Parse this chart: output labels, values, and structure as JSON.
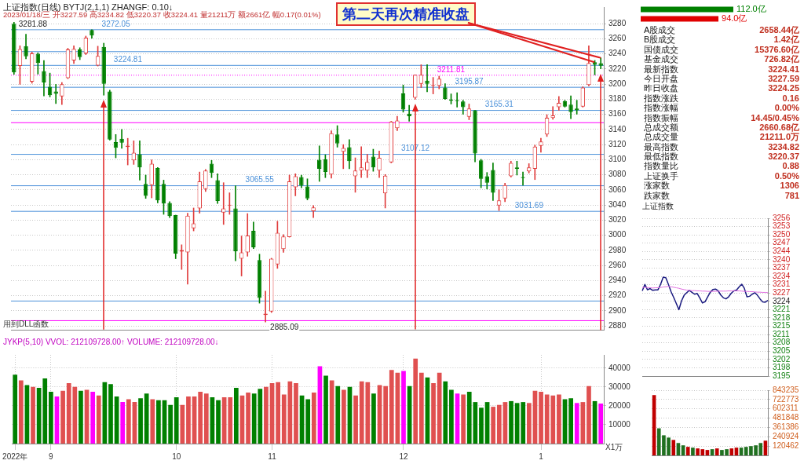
{
  "chart_data": [
    {
      "type": "candlestick",
      "title": "上证指数(日线) BYTJ(2,1,1) ZHANGF: 0.10↓",
      "subtitle": "2023/01/18/三 开3227.59 高3234.82 低3220.37 收3224.41 量21211万 额2661亿 幅0.17(0.01%)",
      "categories": [
        null,
        null,
        null,
        null,
        null,
        null,
        null,
        null,
        null,
        null,
        null,
        null,
        null,
        null,
        null,
        null,
        null,
        null,
        null,
        null,
        null,
        null,
        null,
        null,
        null,
        null,
        null,
        null,
        null,
        null,
        null,
        null,
        null,
        null,
        null,
        null,
        null,
        null,
        null,
        null,
        null,
        null,
        null,
        null,
        null,
        null,
        null,
        null,
        null,
        null,
        null,
        null,
        null,
        null,
        null,
        null,
        null,
        null,
        null,
        null,
        null,
        null,
        null,
        null,
        null,
        null,
        null,
        null,
        null,
        null,
        null,
        null,
        null,
        null,
        null,
        null,
        null,
        null,
        null,
        null,
        null,
        null,
        null,
        null,
        null,
        null,
        null,
        null,
        null,
        null,
        null,
        null,
        null,
        null,
        null,
        null,
        null,
        null,
        null
      ],
      "ohlc": [
        [
          3280.0,
          3281.88,
          3213.0,
          3215.6
        ],
        [
          3224.0,
          3250.8,
          3199.8,
          3246.5
        ],
        [
          3250.2,
          3266.0,
          3233.4,
          3236.8
        ],
        [
          3203.2,
          3242.5,
          3201.2,
          3240.8
        ],
        [
          3240.1,
          3241.5,
          3213.3,
          3228.0
        ],
        [
          3217.3,
          3231.4,
          3184.4,
          3202.2
        ],
        [
          3196.5,
          3214.6,
          3183.1,
          3185.4
        ],
        [
          3190.4,
          3199.8,
          3174.3,
          3187.1
        ],
        [
          3183.7,
          3202.2,
          3173.0,
          3199.8
        ],
        [
          3207.9,
          3247.5,
          3207.2,
          3245.8
        ],
        [
          3231.4,
          3250.8,
          3227.4,
          3246.8
        ],
        [
          3245.8,
          3248.2,
          3232.4,
          3235.7
        ],
        [
          3240.8,
          3263.6,
          3239.1,
          3261.6
        ],
        [
          3271.6,
          3272.05,
          3260.9,
          3264.3
        ],
        [
          3224.7,
          3250.2,
          3224.0,
          3237.4
        ],
        [
          3249.2,
          3254.2,
          3185.4,
          3200.5
        ],
        [
          3190.4,
          3192.1,
          3126.0,
          3126.7
        ],
        [
          3123.3,
          3133.4,
          3102.5,
          3115.9
        ],
        [
          3127.7,
          3140.1,
          3115.0,
          3122.6
        ],
        [
          3116.9,
          3128.3,
          3093.1,
          3118.6
        ],
        [
          3099.1,
          3125.0,
          3093.8,
          3109.2
        ],
        [
          3107.2,
          3125.0,
          3073.0,
          3089.8
        ],
        [
          3068.0,
          3079.7,
          3048.8,
          3052.2
        ],
        [
          3066.3,
          3099.8,
          3049.5,
          3094.8
        ],
        [
          3089.1,
          3089.8,
          3042.8,
          3046.1
        ],
        [
          3068.0,
          3073.0,
          3027.7,
          3042.1
        ],
        [
          3042.8,
          3044.4,
          3023.3,
          3025.3
        ],
        [
          3026.7,
          3026.7,
          2969.0,
          2975.7
        ],
        [
          2978.4,
          2987.4,
          2954.8,
          2980.4
        ],
        [
          2977.3,
          3029.3,
          2935.4,
          3026.0
        ],
        [
          3009.2,
          3036.1,
          3005.8,
          3015.9
        ],
        [
          3035.4,
          3083.7,
          3029.3,
          3071.3
        ],
        [
          3061.2,
          3087.1,
          3057.9,
          3085.7
        ],
        [
          3094.8,
          3099.1,
          3076.3,
          3082.4
        ],
        [
          3073.0,
          3081.4,
          3042.1,
          3045.4
        ],
        [
          3030.0,
          3069.6,
          3014.3,
          3035.4
        ],
        [
          3039.4,
          3056.2,
          3027.7,
          3040.4
        ],
        [
          3035.4,
          3065.6,
          2966.3,
          2979.0
        ],
        [
          2968.9,
          2999.1,
          2946.1,
          2977.3
        ],
        [
          2977.3,
          3028.7,
          2972.3,
          2999.8
        ],
        [
          3005.8,
          3017.6,
          2982.4,
          2984.0
        ],
        [
          2967.3,
          2975.0,
          2910.2,
          2917.0
        ],
        [
          2894.5,
          2926.0,
          2885.09,
          2896.2
        ],
        [
          2899.1,
          2969.6,
          2897.8,
          2969.0
        ],
        [
          2961.6,
          3018.6,
          2956.2,
          3003.2
        ],
        [
          2981.7,
          3000.8,
          2977.3,
          2998.5
        ],
        [
          2997.5,
          3079.7,
          2997.5,
          3071.3
        ],
        [
          3063.6,
          3081.4,
          3052.2,
          3078.0
        ],
        [
          3077.0,
          3079.7,
          3062.9,
          3065.6
        ],
        [
          3064.6,
          3074.7,
          3046.8,
          3048.8
        ],
        [
          3032.0,
          3039.4,
          3023.3,
          3036.7
        ],
        [
          3099.8,
          3118.3,
          3071.3,
          3088.0
        ],
        [
          3100.5,
          3106.5,
          3076.3,
          3083.7
        ],
        [
          3080.4,
          3138.4,
          3075.7,
          3135.1
        ],
        [
          3133.4,
          3145.1,
          3116.6,
          3121.6
        ],
        [
          3110.6,
          3120.0,
          3088.1,
          3115.6
        ],
        [
          3116.6,
          3126.7,
          3088.1,
          3098.1
        ],
        [
          3078.0,
          3102.5,
          3056.9,
          3085.7
        ],
        [
          3085.7,
          3117.3,
          3076.3,
          3089.8
        ],
        [
          3085.7,
          3107.2,
          3076.3,
          3097.1
        ],
        [
          3104.2,
          3113.9,
          3084.7,
          3089.8
        ],
        [
          3085.7,
          3111.6,
          3076.3,
          3102.5
        ],
        [
          3055.5,
          3080.4,
          3036.1,
          3079.0
        ],
        [
          3096.5,
          3150.8,
          3095.8,
          3150.2
        ],
        [
          3141.8,
          3157.5,
          3138.4,
          3151.8
        ],
        [
          3187.8,
          3198.8,
          3162.9,
          3166.3
        ],
        [
          3160.9,
          3172.0,
          3150.8,
          3157.5
        ],
        [
          3182.1,
          3212.3,
          3180.0,
          3212.3
        ],
        [
          3200.5,
          3225.7,
          3195.5,
          3212.3
        ],
        [
          3204.5,
          3225.7,
          3189.8,
          3200.5
        ],
        [
          3197.8,
          3208.9,
          3187.1,
          3198.8
        ],
        [
          3197.8,
          3210.6,
          3193.8,
          3207.2
        ],
        [
          3195.5,
          3200.5,
          3179.7,
          3180.4
        ],
        [
          3179.7,
          3187.1,
          3173.7,
          3178.0
        ],
        [
          3179.0,
          3188.8,
          3169.6,
          3177.7
        ],
        [
          3177.0,
          3178.7,
          3160.2,
          3169.6
        ],
        [
          3156.9,
          3173.7,
          3152.9,
          3167.6
        ],
        [
          3165.3,
          3165.31,
          3097.1,
          3108.2
        ],
        [
          3099.1,
          3100.5,
          3062.9,
          3074.7
        ],
        [
          3078.0,
          3083.1,
          3061.2,
          3069.6
        ],
        [
          3086.4,
          3095.8,
          3046.1,
          3056.2
        ],
        [
          3039.4,
          3060.2,
          3032.7,
          3046.1
        ],
        [
          3048.8,
          3069.0,
          3044.4,
          3066.3
        ],
        [
          3078.0,
          3098.1,
          3077.0,
          3095.8
        ],
        [
          3089.8,
          3098.1,
          3079.7,
          3088.1
        ],
        [
          3077.0,
          3083.7,
          3066.3,
          3075.7
        ],
        [
          3084.7,
          3094.8,
          3082.4,
          3089.8
        ],
        [
          3088.1,
          3119.3,
          3073.7,
          3117.3
        ],
        [
          3118.3,
          3128.3,
          3109.9,
          3124.0
        ],
        [
          3133.4,
          3159.6,
          3130.7,
          3155.4
        ],
        [
          3155.2,
          3170.3,
          3153.5,
          3158.6
        ],
        [
          3169.6,
          3183.7,
          3165.3,
          3175.3
        ],
        [
          3177.7,
          3178.7,
          3169.6,
          3170.3
        ],
        [
          3173.0,
          3184.4,
          3154.2,
          3163.0
        ],
        [
          3167.6,
          3178.7,
          3160.2,
          3165.3
        ],
        [
          3170.3,
          3196.5,
          3169.6,
          3195.5
        ],
        [
          3198.8,
          3250.8,
          3197.8,
          3228.0
        ],
        [
          3229.0,
          3231.4,
          3212.3,
          3225.7
        ],
        [
          3227.59,
          3234.82,
          3220.37,
          3224.41
        ]
      ],
      "colors": [
        "#008000",
        "#e03c3c",
        "#008000",
        "#e03c3c",
        "#008000",
        "#008000",
        "#008000",
        "#008000",
        "#e03c3c",
        "#e03c3c",
        "#e03c3c",
        "#008000",
        "#e03c3c",
        "#008000",
        "#e03c3c",
        "#008000",
        "#008000",
        "#008000",
        "#008000",
        "#e03c3c",
        "#e03c3c",
        "#008000",
        "#008000",
        "#e03c3c",
        "#008000",
        "#008000",
        "#008000",
        "#008000",
        "#e03c3c",
        "#e03c3c",
        "#e03c3c",
        "#e03c3c",
        "#e03c3c",
        "#008000",
        "#008000",
        "#e03c3c",
        "#e03c3c",
        "#008000",
        "#e03c3c",
        "#e03c3c",
        "#008000",
        "#008000",
        "#e03c3c",
        "#e03c3c",
        "#e03c3c",
        "#e03c3c",
        "#e03c3c",
        "#e03c3c",
        "#008000",
        "#008000",
        "#e03c3c",
        "#008000",
        "#008000",
        "#e03c3c",
        "#008000",
        "#e03c3c",
        "#008000",
        "#e03c3c",
        "#e03c3c",
        "#e03c3c",
        "#008000",
        "#e03c3c",
        "#e03c3c",
        "#e03c3c",
        "#e03c3c",
        "#008000",
        "#008000",
        "#e03c3c",
        "#e03c3c",
        "#008000",
        "#e03c3c",
        "#e03c3c",
        "#008000",
        "#008000",
        "#008000",
        "#008000",
        "#e03c3c",
        "#008000",
        "#008000",
        "#008000",
        "#008000",
        "#e03c3c",
        "#e03c3c",
        "#e03c3c",
        "#008000",
        "#008000",
        "#e03c3c",
        "#e03c3c",
        "#e03c3c",
        "#e03c3c",
        "#e03c3c",
        "#e03c3c",
        "#008000",
        "#008000",
        "#008000",
        "#e03c3c",
        "#e03c3c",
        "#008000",
        "#008000"
      ],
      "ylim": [
        2875,
        3302
      ],
      "yticks": [
        2880,
        2900,
        2920,
        2940,
        2960,
        2980,
        3000,
        3020,
        3040,
        3060,
        3080,
        3100,
        3120,
        3140,
        3160,
        3180,
        3200,
        3220,
        3240,
        3260,
        3280
      ],
      "grid": "y",
      "tick_labels": "y",
      "ref_lines": [
        {
          "axis": "y",
          "value": 3272.05,
          "label": "3272.05",
          "color": "#4a90d9"
        },
        {
          "axis": "y",
          "value": 3243,
          "color": "#4a90d9"
        },
        {
          "axis": "y",
          "value": 3224.81,
          "label": "3224.81",
          "color": "#4a90d9"
        },
        {
          "axis": "y",
          "value": 3211.81,
          "label": "3211.81",
          "color": "#ff00ff",
          "line_style": "dotted"
        },
        {
          "axis": "y",
          "value": 3195.87,
          "label": "3195.87",
          "color": "#4a90d9"
        },
        {
          "axis": "y",
          "value": 3165.31,
          "label": "3165.31",
          "color": "#4a90d9"
        },
        {
          "axis": "y",
          "value": 3149,
          "color": "#ff00ff"
        },
        {
          "axis": "y",
          "value": 3107.12,
          "label": "3107.12",
          "color": "#4a90d9"
        },
        {
          "axis": "y",
          "value": 3065.55,
          "label": "3065.55",
          "color": "#4a90d9"
        },
        {
          "axis": "y",
          "value": 3031.69,
          "label": "3031.69",
          "color": "#4a90d9"
        },
        {
          "axis": "y",
          "value": 2913,
          "color": "#4a90d9"
        },
        {
          "axis": "y",
          "value": 2887,
          "color": "#ff00ff"
        }
      ],
      "annotations": [
        "第二天再次精准收盘",
        "用到DLL函数",
        "3281.88",
        "2885.09"
      ]
    },
    {
      "type": "bar",
      "title": "JYKP(5,10) VVOL: 212109728.00↑ VOLUME: 212109728.00↓",
      "ylabel": "X1万",
      "categories": [
        "2022年",
        null,
        null,
        null,
        null,
        null,
        "9",
        null,
        null,
        null,
        null,
        null,
        null,
        null,
        null,
        null,
        null,
        null,
        null,
        null,
        null,
        null,
        null,
        null,
        null,
        null,
        null,
        "10",
        null,
        null,
        null,
        null,
        null,
        null,
        null,
        null,
        null,
        null,
        null,
        null,
        null,
        null,
        null,
        "11",
        null,
        null,
        null,
        null,
        null,
        null,
        null,
        null,
        null,
        null,
        null,
        null,
        null,
        null,
        null,
        null,
        null,
        null,
        null,
        null,
        null,
        "12",
        null,
        null,
        null,
        null,
        null,
        null,
        null,
        null,
        null,
        null,
        null,
        null,
        null,
        null,
        null,
        null,
        null,
        null,
        null,
        null,
        null,
        null,
        "1",
        null,
        null,
        null,
        null,
        null,
        null,
        null,
        null,
        null,
        null
      ],
      "values": [
        36500,
        33500,
        31000,
        30000,
        29500,
        34500,
        27500,
        25000,
        28000,
        32000,
        30000,
        28000,
        28500,
        27500,
        25500,
        32500,
        31500,
        25000,
        22000,
        23500,
        22000,
        24000,
        26500,
        23500,
        23000,
        23000,
        20500,
        24500,
        20500,
        25000,
        25000,
        27500,
        26500,
        24500,
        23000,
        24500,
        24500,
        29500,
        25500,
        27000,
        26500,
        29000,
        30000,
        32000,
        32500,
        26000,
        33000,
        32000,
        25500,
        23500,
        27000,
        41000,
        36000,
        33500,
        30500,
        28500,
        30000,
        25500,
        33000,
        32500,
        26500,
        31000,
        30500,
        39000,
        37500,
        38500,
        30500,
        45000,
        37500,
        35000,
        32000,
        37500,
        33000,
        28500,
        26500,
        26000,
        27500,
        22000,
        19000,
        22000,
        19500,
        20500,
        22000,
        22500,
        21500,
        22000,
        21500,
        28000,
        27500,
        26000,
        25500,
        26000,
        23500,
        24000,
        21500,
        22000,
        30500,
        22500,
        21211
      ],
      "colors": [
        "#008000",
        "#e05050",
        "#008000",
        "#e05050",
        "#008000",
        "#008000",
        "#008000",
        "#ff00ff",
        "#e05050",
        "#e05050",
        "#e05050",
        "#008000",
        "#e05050",
        "#ff00ff",
        "#e05050",
        "#008000",
        "#008000",
        "#008000",
        "#ff00ff",
        "#e05050",
        "#e05050",
        "#008000",
        "#008000",
        "#e05050",
        "#008000",
        "#008000",
        "#008000",
        "#008000",
        "#e05050",
        "#e05050",
        "#e05050",
        "#e05050",
        "#e05050",
        "#008000",
        "#008000",
        "#e05050",
        "#e05050",
        "#008000",
        "#e05050",
        "#e05050",
        "#008000",
        "#008000",
        "#e05050",
        "#e05050",
        "#e05050",
        "#e05050",
        "#e05050",
        "#e05050",
        "#008000",
        "#008000",
        "#e05050",
        "#ff00ff",
        "#008000",
        "#e05050",
        "#008000",
        "#e05050",
        "#008000",
        "#e05050",
        "#e05050",
        "#e05050",
        "#008000",
        "#e05050",
        "#e05050",
        "#e05050",
        "#e05050",
        "#ff00ff",
        "#008000",
        "#e05050",
        "#e05050",
        "#008000",
        "#e05050",
        "#e05050",
        "#008000",
        "#008000",
        "#ff00ff",
        "#e05050",
        "#008000",
        "#008000",
        "#008000",
        "#008000",
        "#e05050",
        "#e05050",
        "#e05050",
        "#008000",
        "#008000",
        "#008000",
        "#e05050",
        "#e05050",
        "#e05050",
        "#e05050",
        "#e05050",
        "#e05050",
        "#008000",
        "#008000",
        "#ff00ff",
        "#e05050",
        "#e05050",
        "#008000",
        "#ff00ff"
      ],
      "ylim": [
        0,
        47000
      ],
      "yticks": [
        10000,
        20000,
        30000,
        40000
      ],
      "grid": true
    },
    {
      "type": "bar",
      "orientation": "horizontal",
      "categories": [
        null,
        null
      ],
      "values": [
        112.0,
        94.0
      ],
      "colors": [
        "#008000",
        "#e00000"
      ],
      "value_labels": [
        "112.0亿",
        "94.0亿"
      ],
      "tick_labels": false
    },
    {
      "type": "other",
      "annotations": [
        "A股成交",
        "2658.44亿",
        "B股成交",
        "1.42亿",
        "国债成交",
        "15376.60亿",
        "基金成交",
        "726.82亿",
        "最新指数",
        "3224.41",
        "今日开盘",
        "3227.59",
        "昨日收盘",
        "3224.25",
        "指数涨跌",
        "0.16",
        "指数涨幅",
        "0.00%",
        "指数振幅",
        "14.45/0.45%",
        "总成交额",
        "2660.68亿",
        "总成交量",
        "21211.0万",
        "最高指数",
        "3234.82",
        "最低指数",
        "3220.37",
        "指数量比",
        "0.88",
        "上证换手",
        "0.50%",
        "涨家数",
        "1306",
        "跌家数",
        "781"
      ]
    },
    {
      "type": "line",
      "title": "上证指数",
      "categories": [
        null,
        null,
        null,
        null,
        null,
        null,
        null,
        null,
        null,
        null,
        null,
        null,
        null,
        null,
        null,
        null,
        null,
        null,
        null,
        null,
        null,
        null,
        null,
        null,
        null,
        null,
        null,
        null,
        null,
        null,
        null,
        null,
        null,
        null,
        null,
        null,
        null,
        null,
        null,
        null,
        null,
        null,
        null,
        null,
        null,
        null,
        null,
        null,
        null
      ],
      "series": [
        {
          "color": "#1a1a80",
          "values": [
            3228.3,
            3230.8,
            3228.7,
            3229.2,
            3228.5,
            3228.7,
            3228.7,
            3230.8,
            3233.6,
            3233.4,
            3230.8,
            3228.0,
            3225.8,
            3223.4,
            3221.0,
            3224.4,
            3226.6,
            3227.6,
            3228.5,
            3227.7,
            3227.0,
            3227.3,
            3225.5,
            3223.6,
            3224.1,
            3226.0,
            3227.8,
            3228.8,
            3229.0,
            3228.3,
            3226.7,
            3225.6,
            3225.2,
            3226.0,
            3227.4,
            3228.3,
            3228.6,
            3229.8,
            3230.9,
            3229.3,
            3226.0,
            3226.2,
            3227.0,
            3227.6,
            3226.6,
            3225.2,
            3224.0,
            3223.9,
            3224.6
          ]
        },
        {
          "color": "#e070e0",
          "values": [
            3229.7,
            3229.6,
            3229.6,
            3229.5,
            3229.4,
            3229.5,
            3229.5,
            3229.6,
            3229.8,
            3229.9,
            3230.0,
            3229.9,
            3229.7,
            3229.5,
            3229.3,
            3229.0,
            3228.8,
            3228.6,
            3228.5,
            3228.4,
            3228.4,
            3228.3,
            3228.3,
            3228.2,
            3228.2,
            3228.1,
            3228.1,
            3228.1,
            3228.1,
            3228.2,
            3228.2,
            3228.2,
            3228.2,
            3228.3,
            3228.3,
            3228.3,
            3228.3,
            3228.3,
            3228.2,
            3228.1,
            3228.1,
            3228.0,
            3228.0,
            3227.9,
            3227.8,
            3227.8,
            3227.7,
            3227.7,
            3227.6
          ]
        }
      ],
      "ylim": [
        3195.27,
        3256.45
      ],
      "yticks": [
        {
          "value": 3195.27,
          "label": "3195"
        },
        {
          "value": 3198.49,
          "label": "3198"
        },
        {
          "value": 3201.71,
          "label": "3202"
        },
        {
          "value": 3204.93,
          "label": "3205"
        },
        {
          "value": 3208.15,
          "label": "3208"
        },
        {
          "value": 3211.37,
          "label": "3211"
        },
        {
          "value": 3214.59,
          "label": "3215"
        },
        {
          "value": 3217.81,
          "label": "3218"
        },
        {
          "value": 3221.03,
          "label": "3221"
        },
        {
          "value": 3224.25,
          "label": "3224"
        },
        {
          "value": 3227.47,
          "label": "3227"
        },
        {
          "value": 3230.69,
          "label": "3231"
        },
        {
          "value": 3233.91,
          "label": "3234"
        },
        {
          "value": 3237.13,
          "label": "3237"
        },
        {
          "value": 3240.35,
          "label": "3240"
        },
        {
          "value": 3243.57,
          "label": "3244"
        },
        {
          "value": 3246.79,
          "label": "3247"
        },
        {
          "value": 3250.01,
          "label": "3250"
        },
        {
          "value": 3253.23,
          "label": "3253"
        },
        {
          "value": 3256.45,
          "label": "3256"
        }
      ],
      "grid": "y",
      "tick_labels": "y",
      "marker": "none"
    },
    {
      "type": "bar",
      "categories": [
        null,
        null,
        null,
        null,
        null,
        null,
        null,
        null,
        null,
        null,
        null,
        null,
        null,
        null,
        null,
        null,
        null,
        null,
        null,
        null,
        null,
        null,
        null,
        null
      ],
      "values": [
        780000,
        350000,
        260000,
        230000,
        200000,
        160000,
        130000,
        110000,
        100000,
        90000,
        80000,
        70000,
        80000,
        90000,
        70000,
        80000,
        90000,
        100000,
        100000,
        110000,
        120000,
        130000,
        160000,
        190000
      ],
      "colors": [
        "#c00000",
        "#207020",
        "#207020",
        "#207020",
        "#c00000",
        "#207020",
        "#207020",
        "#c00000",
        "#207020",
        "#c00000",
        "#c00000",
        "#c00000",
        "#207020",
        "#c00000",
        "#207020",
        "#207020",
        "#c00000",
        "#c00000",
        "#207020",
        "#207020",
        "#207020",
        "#207020",
        "#207020",
        "#c00000"
      ],
      "ylim": [
        0,
        843235
      ],
      "yticks": [
        120462,
        240924,
        361386,
        481848,
        602311,
        722773,
        843235
      ],
      "grid": true,
      "tick_labels": "y"
    }
  ]
}
